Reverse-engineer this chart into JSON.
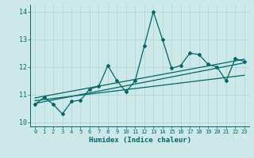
{
  "title": "",
  "xlabel": "Humidex (Indice chaleur)",
  "bg_color": "#cce8e8",
  "line_color": "#006666",
  "grid_color": "#b0d8d8",
  "xlim": [
    -0.5,
    23.5
  ],
  "ylim": [
    9.85,
    14.25
  ],
  "yticks": [
    10,
    11,
    12,
    13,
    14
  ],
  "xticks": [
    0,
    1,
    2,
    3,
    4,
    5,
    6,
    7,
    8,
    9,
    10,
    11,
    12,
    13,
    14,
    15,
    16,
    17,
    18,
    19,
    20,
    21,
    22,
    23
  ],
  "main_x": [
    0,
    1,
    2,
    3,
    4,
    5,
    6,
    7,
    8,
    9,
    10,
    11,
    12,
    13,
    14,
    15,
    16,
    17,
    18,
    19,
    20,
    21,
    22,
    23
  ],
  "main_y": [
    10.65,
    10.9,
    10.65,
    10.3,
    10.75,
    10.8,
    11.2,
    11.3,
    12.05,
    11.5,
    11.1,
    11.5,
    12.75,
    14.0,
    13.0,
    11.95,
    12.05,
    12.5,
    12.45,
    12.1,
    12.0,
    11.5,
    12.3,
    12.2
  ],
  "trend1_x": [
    0,
    23
  ],
  "trend1_y": [
    10.68,
    12.15
  ],
  "trend2_x": [
    0,
    23
  ],
  "trend2_y": [
    10.78,
    11.7
  ],
  "trend3_x": [
    0,
    23
  ],
  "trend3_y": [
    10.88,
    12.28
  ]
}
